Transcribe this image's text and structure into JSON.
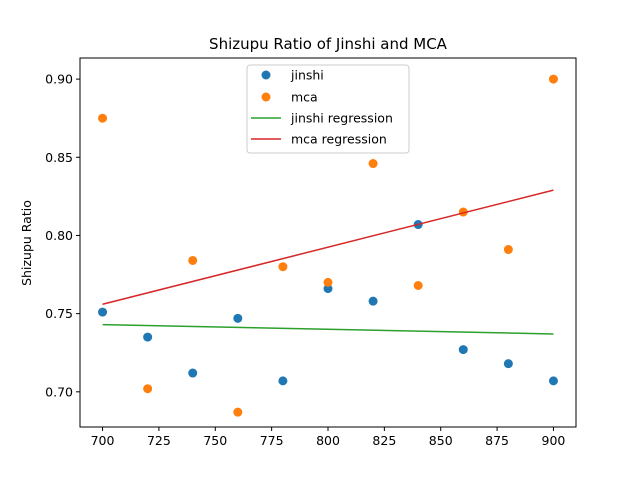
{
  "chart_data": {
    "type": "scatter",
    "title": "Shizupu Ratio of Jinshi and MCA",
    "xlabel": "",
    "ylabel": "Shizupu Ratio",
    "xlim": [
      690,
      910
    ],
    "ylim": [
      0.6775,
      0.9135
    ],
    "xticks": [
      700,
      725,
      750,
      775,
      800,
      825,
      850,
      875,
      900
    ],
    "yticks": [
      0.7,
      0.75,
      0.8,
      0.85,
      0.9
    ],
    "ytick_labels": [
      "0.70",
      "0.75",
      "0.80",
      "0.85",
      "0.90"
    ],
    "grid": false,
    "legend_position": "top-center",
    "series": [
      {
        "name": "jinshi",
        "kind": "points",
        "color": "#1f77b4",
        "x": [
          700,
          720,
          740,
          760,
          780,
          800,
          820,
          840,
          860,
          880,
          900
        ],
        "y": [
          0.751,
          0.735,
          0.712,
          0.747,
          0.707,
          0.766,
          0.758,
          0.807,
          0.727,
          0.718,
          0.707
        ]
      },
      {
        "name": "mca",
        "kind": "points",
        "color": "#ff7f0e",
        "x": [
          700,
          720,
          740,
          760,
          780,
          800,
          820,
          840,
          860,
          880,
          900
        ],
        "y": [
          0.875,
          0.702,
          0.784,
          0.687,
          0.78,
          0.77,
          0.846,
          0.768,
          0.815,
          0.791,
          0.9
        ]
      },
      {
        "name": "jinshi regression",
        "kind": "line",
        "color": "#2ca02c",
        "x": [
          700,
          900
        ],
        "y": [
          0.743,
          0.737
        ]
      },
      {
        "name": "mca regression",
        "kind": "line",
        "color": "#d62728",
        "x": [
          700,
          900
        ],
        "y": [
          0.756,
          0.829
        ]
      }
    ]
  }
}
